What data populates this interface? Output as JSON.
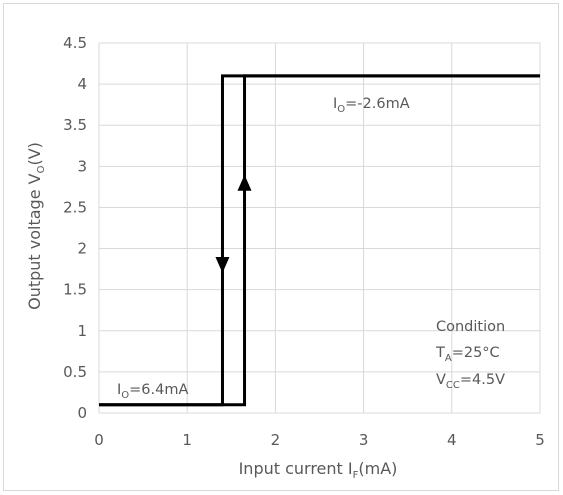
{
  "chart_data": {
    "type": "line",
    "xlabel": {
      "main": "Input current I",
      "sub": "F",
      "unit": "(mA)"
    },
    "ylabel": {
      "main": "Output voltage V",
      "sub": "O",
      "unit": "(V)"
    },
    "xlim": [
      0,
      5
    ],
    "ylim": [
      0,
      4.5
    ],
    "x_ticks": [
      "0",
      "1",
      "2",
      "3",
      "4",
      "5"
    ],
    "y_ticks": [
      "0",
      "0.5",
      "1",
      "1.5",
      "2",
      "2.5",
      "3",
      "3.5",
      "4",
      "4.5"
    ],
    "grid": true,
    "series": [
      {
        "direction": "rising",
        "x": [
          0,
          1.65,
          1.65,
          5
        ],
        "y": [
          0.1,
          0.1,
          4.1,
          4.1
        ],
        "arrow": {
          "x": 1.65,
          "y": 2.8,
          "points": "up"
        }
      },
      {
        "direction": "falling",
        "x": [
          5,
          1.4,
          1.4,
          0
        ],
        "y": [
          4.1,
          4.1,
          0.1,
          0.1
        ],
        "arrow": {
          "x": 1.4,
          "y": 1.8,
          "points": "down"
        }
      }
    ],
    "annotations": {
      "io_high": {
        "main": "I",
        "sub": "O",
        "rest": "=-2.6mA"
      },
      "io_low": {
        "main": "I",
        "sub": "O",
        "rest": "=6.4mA"
      },
      "condition_title": "Condition",
      "ta": {
        "main": "T",
        "sub": "A",
        "rest": "=25°C"
      },
      "vcc": {
        "main": "V",
        "sub": "CC",
        "rest": "=4.5V"
      }
    },
    "colors": {
      "line": "#000000",
      "grid": "#d9d9d9",
      "text": "#595959"
    }
  }
}
